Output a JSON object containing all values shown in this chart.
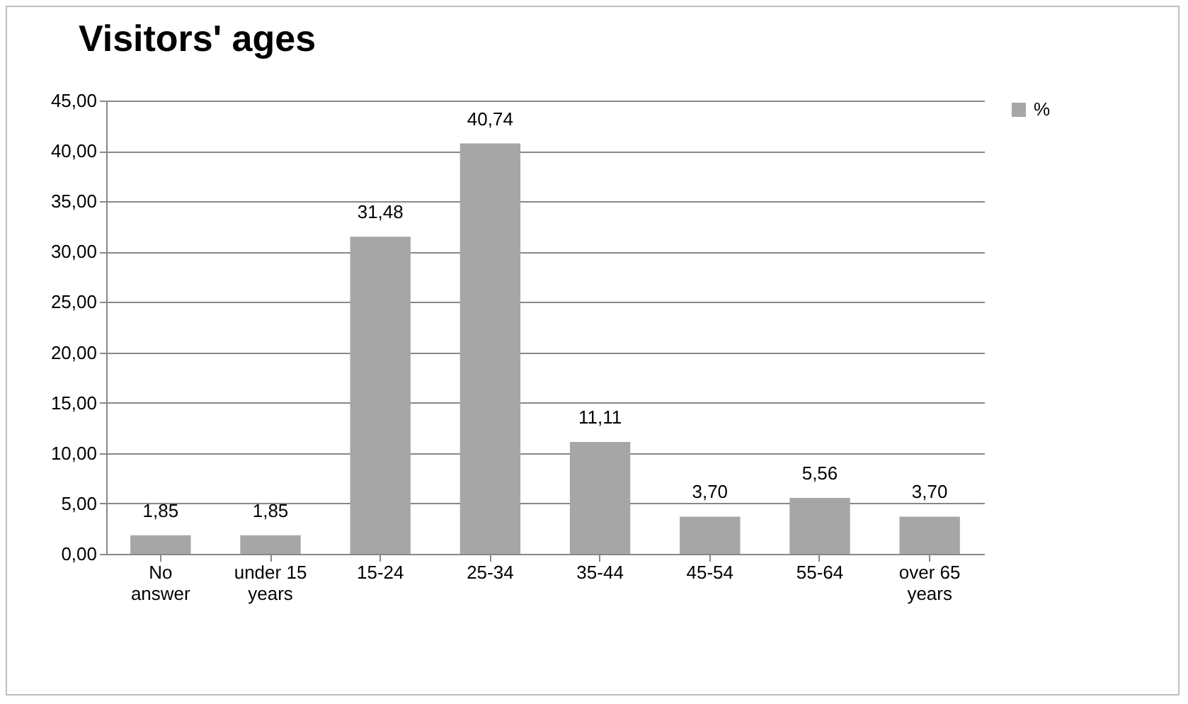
{
  "chart_data": {
    "type": "bar",
    "title": "Visitors' ages",
    "categories": [
      "No answer",
      "under 15 years",
      "15-24",
      "25-34",
      "35-44",
      "45-54",
      "55-64",
      "over 65 years"
    ],
    "series": [
      {
        "name": "%",
        "color": "#a6a6a6",
        "values": [
          1.85,
          1.85,
          31.48,
          40.74,
          11.11,
          3.7,
          5.56,
          3.7
        ],
        "value_labels": [
          "1,85",
          "1,85",
          "31,48",
          "40,74",
          "11,11",
          "3,70",
          "5,56",
          "3,70"
        ]
      }
    ],
    "ylim": [
      0,
      45
    ],
    "yticks": [
      {
        "value": 0,
        "label": "0,00"
      },
      {
        "value": 5,
        "label": "5,00"
      },
      {
        "value": 10,
        "label": "10,00"
      },
      {
        "value": 15,
        "label": "15,00"
      },
      {
        "value": 20,
        "label": "20,00"
      },
      {
        "value": 25,
        "label": "25,00"
      },
      {
        "value": 30,
        "label": "30,00"
      },
      {
        "value": 35,
        "label": "35,00"
      },
      {
        "value": 40,
        "label": "40,00"
      },
      {
        "value": 45,
        "label": "45,00"
      }
    ],
    "grid": "y",
    "legend": "right"
  }
}
